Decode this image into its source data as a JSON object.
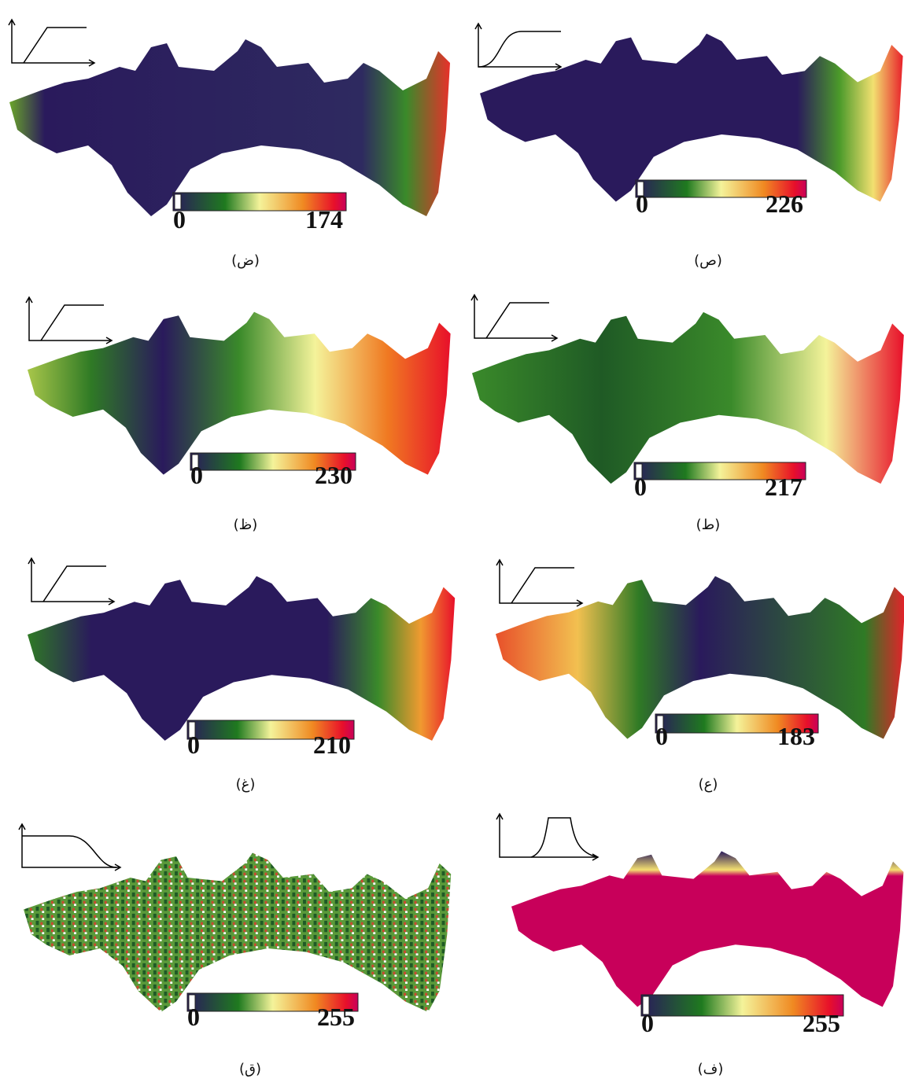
{
  "panels": [
    {
      "caption": "(ض)",
      "legend_min": 0,
      "legend_max": 174
    },
    {
      "caption": "(ص)",
      "legend_min": 0,
      "legend_max": 226
    },
    {
      "caption": "(ظ)",
      "legend_min": 0,
      "legend_max": 230
    },
    {
      "caption": "(ط)",
      "legend_min": 0,
      "legend_max": 217
    },
    {
      "caption": "(غ)",
      "legend_min": 0,
      "legend_max": 210
    },
    {
      "caption": "(ع)",
      "legend_min": 0,
      "legend_max": 183
    },
    {
      "caption": "(ق)",
      "legend_min": 0,
      "legend_max": 255
    },
    {
      "caption": "(ف)",
      "legend_min": 0,
      "legend_max": 255
    }
  ]
}
